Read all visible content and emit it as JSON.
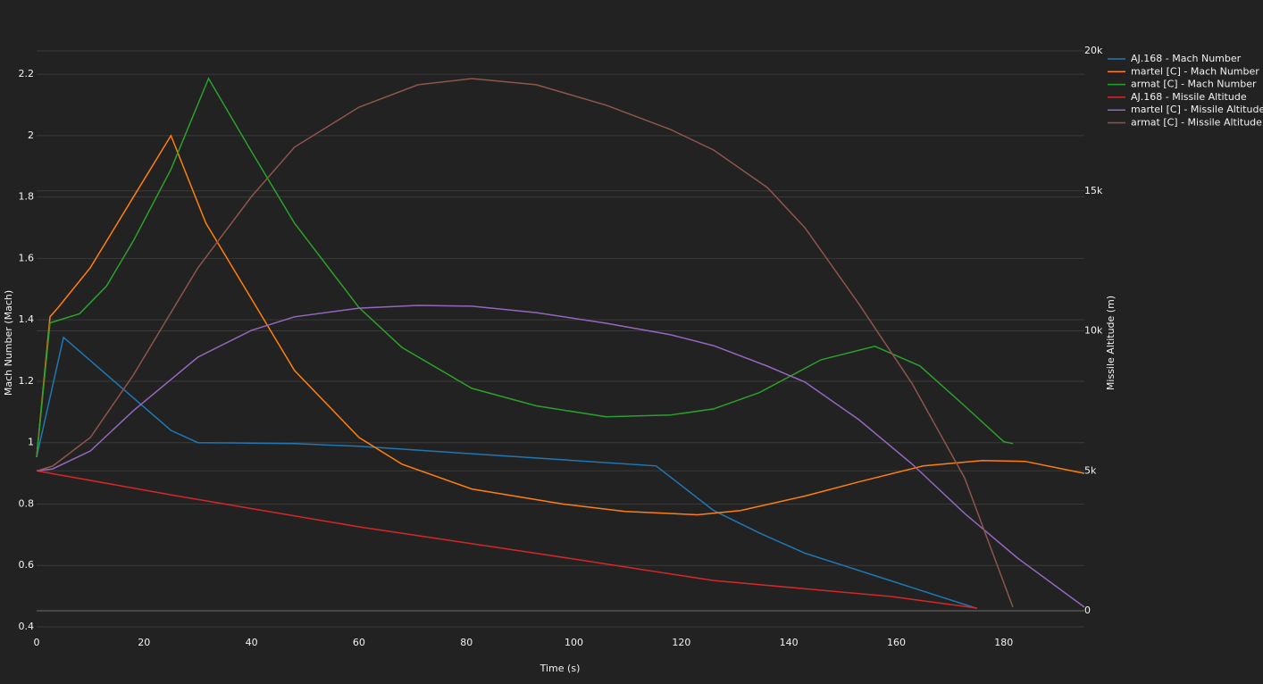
{
  "chart_data": {
    "type": "line",
    "x_label": "Time (s)",
    "y_label": "Mach Number (Mach)",
    "y2_label": "Missile Altitude (m)",
    "xlim": [
      0,
      195
    ],
    "xticks": [
      0,
      20,
      40,
      60,
      80,
      100,
      120,
      140,
      160,
      180
    ],
    "ylim": [
      0.4,
      2.276
    ],
    "yticks": [
      0.4,
      0.6,
      0.8,
      1,
      1.2,
      1.4,
      1.6,
      1.8,
      2,
      2.2
    ],
    "y2lim": [
      -574,
      20000
    ],
    "y2ticks": [
      0,
      {
        "value": 5000,
        "label": "5k"
      },
      {
        "value": 10000,
        "label": "10k"
      },
      {
        "value": 15000,
        "label": "15k"
      },
      {
        "value": 20000,
        "label": "20k"
      }
    ],
    "grid": true,
    "legend": "top-right",
    "series": [
      {
        "name": "AJ.168 - Mach Number",
        "color": "#1f77b4",
        "axis": "y",
        "x": [
          0,
          5,
          25,
          30,
          48,
          60,
          115.3,
          126,
          134.5,
          143,
          159,
          175
        ],
        "values": [
          0.953,
          1.343,
          1.04,
          1.0,
          0.997,
          0.988,
          0.924,
          0.779,
          0.706,
          0.64,
          0.55,
          0.46
        ]
      },
      {
        "name": "martel [C] - Mach Number",
        "color": "#ff7f0e",
        "axis": "y",
        "x": [
          0,
          2.5,
          4,
          10,
          18,
          25,
          31.5,
          40,
          48,
          60,
          68,
          81,
          98,
          109.5,
          123,
          131,
          143,
          153,
          165,
          176,
          184,
          195
        ],
        "values": [
          0.953,
          1.41,
          1.44,
          1.57,
          1.8,
          2.0,
          1.715,
          1.468,
          1.235,
          1.017,
          0.93,
          0.849,
          0.8,
          0.776,
          0.765,
          0.779,
          0.826,
          0.872,
          0.924,
          0.942,
          0.939,
          0.9
        ]
      },
      {
        "name": "armat [C] - Mach Number",
        "color": "#2ca02c",
        "axis": "y",
        "x": [
          0,
          2.5,
          8,
          13,
          18,
          25,
          32,
          40,
          48,
          60,
          68,
          81,
          93,
          106,
          118,
          126,
          134.5,
          146,
          156,
          164.4,
          172.7,
          180,
          181.7
        ],
        "values": [
          0.953,
          1.39,
          1.42,
          1.51,
          1.657,
          1.89,
          2.186,
          1.948,
          1.715,
          1.44,
          1.31,
          1.177,
          1.12,
          1.084,
          1.09,
          1.11,
          1.163,
          1.27,
          1.314,
          1.25,
          1.12,
          1.003,
          0.997
        ]
      },
      {
        "name": "AJ.168 - Missile Altitude",
        "color": "#d62728",
        "axis": "y2",
        "x": [
          0,
          26,
          60,
          93,
          126,
          159,
          175
        ],
        "values": [
          5000,
          4110,
          3000,
          2055,
          1080,
          510,
          96
        ]
      },
      {
        "name": "martel [C] - Missile Altitude",
        "color": "#9467bd",
        "axis": "y2",
        "x": [
          0,
          3,
          10,
          18,
          30,
          40,
          48,
          60,
          71,
          81,
          93,
          106,
          118,
          126,
          136,
          143,
          153,
          163,
          172.7,
          182.6,
          195
        ],
        "values": [
          5000,
          5070,
          5710,
          7150,
          9060,
          10020,
          10500,
          10810,
          10910,
          10880,
          10650,
          10270,
          9860,
          9470,
          8740,
          8170,
          6830,
          5230,
          3480,
          1880,
          130
        ]
      },
      {
        "name": "armat [C] - Missile Altitude",
        "color": "#8c564b",
        "axis": "y2",
        "x": [
          0,
          3,
          10,
          18,
          30,
          40,
          48,
          60,
          71,
          81,
          93,
          106,
          118,
          126,
          136,
          143,
          153,
          163,
          172.7,
          181.7
        ],
        "values": [
          5000,
          5170,
          6190,
          8420,
          12250,
          14800,
          16560,
          17990,
          18790,
          19010,
          18790,
          18060,
          17190,
          16460,
          15120,
          13680,
          10970,
          8100,
          4750,
          130
        ]
      }
    ]
  }
}
